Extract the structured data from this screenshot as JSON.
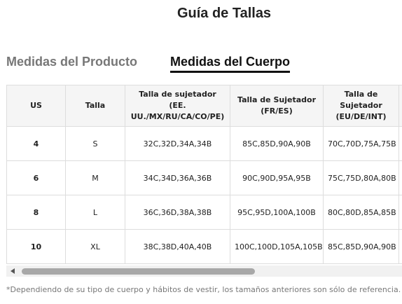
{
  "header": {
    "title": "Guía de Tallas"
  },
  "tabs": [
    "Medidas del Producto",
    "Medidas del Cuerpo"
  ],
  "table": {
    "columns": [
      "US",
      "Talla",
      "Talla de sujetador (EE. UU./MX/RU/CA/CO/PE)",
      "Talla de Sujetador (FR/ES)",
      "Talla de Sujetador (EU/DE/INT)"
    ],
    "rows": [
      [
        "4",
        "S",
        "32C,32D,34A,34B",
        "85C,85D,90A,90B",
        "70C,70D,75A,75B"
      ],
      [
        "6",
        "M",
        "34C,34D,36A,36B",
        "90C,90D,95A,95B",
        "75C,75D,80A,80B"
      ],
      [
        "8",
        "L",
        "36C,36D,38A,38B",
        "95C,95D,100A,100B",
        "80C,80D,85A,85B"
      ],
      [
        "10",
        "XL",
        "38C,38D,40A,40B",
        "100C,100D,105A,105B",
        "85C,85D,90A,90B"
      ]
    ]
  },
  "footnote": "*Dependiendo de su tipo de cuerpo y hábitos de vestir, los tamaños anteriores son sólo de referencia."
}
